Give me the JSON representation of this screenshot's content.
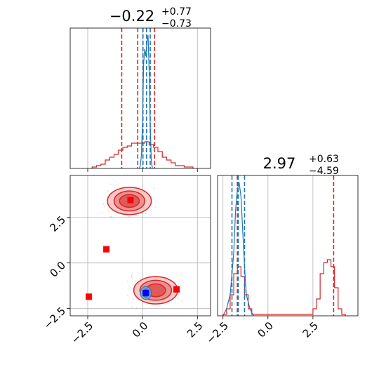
{
  "colors": {
    "red": "#d62728",
    "blue": "#1f77b4",
    "marker_red": "#ff0000",
    "marker_blue": "#0000ff",
    "grid": "#b0b0b0"
  },
  "chart_data": [
    {
      "type": "area",
      "panel": "marginal-param1",
      "title": {
        "median": "−0.22",
        "upper": "+0.77",
        "lower": "−0.73"
      },
      "xlim": [
        -3.3,
        3.1
      ],
      "grid": true,
      "x_ticks": [
        -2.5,
        0.0,
        2.5
      ],
      "series": [
        {
          "color": "red",
          "style": "step",
          "x": [
            -2.2,
            -2.0,
            -1.8,
            -1.6,
            -1.4,
            -1.2,
            -1.0,
            -0.8,
            -0.6,
            -0.4,
            -0.2,
            0.0,
            0.2,
            0.4,
            0.6,
            0.8,
            1.0,
            1.2,
            1.4,
            1.6,
            1.8,
            2.0,
            2.2
          ],
          "y": [
            0.01,
            0.02,
            0.03,
            0.06,
            0.08,
            0.1,
            0.13,
            0.15,
            0.16,
            0.18,
            0.18,
            0.18,
            0.19,
            0.17,
            0.15,
            0.12,
            0.08,
            0.06,
            0.04,
            0.02,
            0.02,
            0.01,
            0.01
          ],
          "quantile_lines": [
            -0.95,
            -0.22,
            0.55
          ]
        },
        {
          "color": "blue",
          "style": "line",
          "x": [
            -0.15,
            -0.1,
            -0.05,
            0.0,
            0.05,
            0.1,
            0.15,
            0.2,
            0.25,
            0.3,
            0.35,
            0.4,
            0.45
          ],
          "y": [
            0.0,
            0.02,
            0.1,
            0.35,
            0.75,
            0.85,
            0.8,
            0.9,
            0.95,
            0.7,
            0.3,
            0.05,
            0.0
          ],
          "quantile_lines": [
            0.02,
            0.18,
            0.35
          ]
        }
      ]
    },
    {
      "type": "area",
      "panel": "marginal-param2",
      "title": {
        "median": "2.97",
        "upper": "+0.63",
        "lower": "−4.59"
      },
      "xlim": [
        -2.8,
        5.0
      ],
      "grid": true,
      "x_ticks": [
        -2.5,
        0.0,
        2.5
      ],
      "series": [
        {
          "color": "red",
          "style": "step",
          "x": [
            -2.4,
            -2.2,
            -2.0,
            -1.8,
            -1.6,
            -1.4,
            -1.2,
            -1.0,
            -0.8,
            2.4,
            2.6,
            2.8,
            3.0,
            3.2,
            3.4,
            3.6,
            3.8,
            4.0,
            4.2
          ],
          "y": [
            0.01,
            0.05,
            0.15,
            0.3,
            0.35,
            0.28,
            0.15,
            0.05,
            0.01,
            0.01,
            0.05,
            0.12,
            0.3,
            0.38,
            0.4,
            0.35,
            0.2,
            0.05,
            0.01
          ],
          "quantile_lines": [
            -1.7,
            3.65
          ]
        },
        {
          "color": "blue",
          "style": "line",
          "x": [
            -2.5,
            -2.3,
            -2.1,
            -1.9,
            -1.8,
            -1.7,
            -1.6,
            -1.5,
            -1.4,
            -1.3,
            -1.2,
            -1.0,
            -0.8
          ],
          "y": [
            0.0,
            0.05,
            0.15,
            0.45,
            0.75,
            0.9,
            0.95,
            0.85,
            0.6,
            0.35,
            0.15,
            0.05,
            0.0
          ],
          "quantile_lines": [
            -2.0,
            -1.65,
            -1.3
          ]
        }
      ]
    },
    {
      "type": "scatter",
      "panel": "joint-param1-param2",
      "xlim": [
        -3.3,
        3.1
      ],
      "ylim": [
        -2.9,
        4.8
      ],
      "grid": true,
      "x_ticks": [
        -2.5,
        0.0,
        2.5
      ],
      "y_ticks": [
        -2.5,
        0.0,
        2.5
      ],
      "contours_red": [
        {
          "cx": -0.6,
          "cy": 3.4,
          "rx": [
            1.0,
            0.7,
            0.45
          ],
          "ry": [
            0.75,
            0.55,
            0.35
          ]
        },
        {
          "cx": 0.6,
          "cy": -1.5,
          "rx": [
            1.0,
            0.72,
            0.45
          ],
          "ry": [
            0.75,
            0.55,
            0.35
          ]
        }
      ],
      "contours_blue": [
        {
          "cx": 0.15,
          "cy": -1.65,
          "rx": [
            0.25,
            0.15
          ],
          "ry": [
            0.35,
            0.22
          ]
        }
      ],
      "red_markers": [
        {
          "x": -0.55,
          "y": 3.45
        },
        {
          "x": -1.65,
          "y": 0.75
        },
        {
          "x": -2.45,
          "y": -1.85
        },
        {
          "x": 1.55,
          "y": -1.45
        }
      ],
      "blue_markers": [
        {
          "x": 0.15,
          "y": -1.65
        }
      ]
    }
  ],
  "tick_labels": {
    "neg": "−2.5",
    "zero": "0.0",
    "pos": "2.5"
  }
}
